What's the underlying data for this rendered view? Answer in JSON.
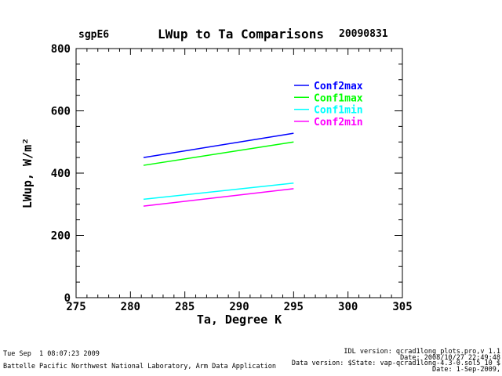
{
  "header": {
    "site": "sgpE6",
    "date": "20090831"
  },
  "chart_data": {
    "type": "line",
    "title": "LWup to Ta Comparisons",
    "site": "sgpE6",
    "date": "20090831",
    "xlabel": "Ta, Degree K",
    "ylabel": "LWup, W/m²",
    "xlim": [
      275,
      305
    ],
    "ylim": [
      0,
      800
    ],
    "x_major_ticks": [
      275,
      280,
      285,
      290,
      295,
      300,
      305
    ],
    "x_minor_step": 1,
    "y_major_ticks": [
      0,
      200,
      400,
      600,
      800
    ],
    "y_minor_step": 50,
    "grid": false,
    "background": "#ffffff",
    "axis_color": "#000000",
    "legend_position": "inside-upper-right",
    "series": [
      {
        "name": "Conf2max",
        "color": "#0000ff",
        "x": [
          281.2,
          295.0
        ],
        "y": [
          450,
          528
        ]
      },
      {
        "name": "Conf1max",
        "color": "#00ff00",
        "x": [
          281.2,
          295.0
        ],
        "y": [
          425,
          500
        ]
      },
      {
        "name": "Conf1min",
        "color": "#00ffff",
        "x": [
          281.2,
          295.0
        ],
        "y": [
          316,
          368
        ]
      },
      {
        "name": "Conf2min",
        "color": "#ff00ff",
        "x": [
          281.2,
          295.0
        ],
        "y": [
          294,
          350
        ]
      }
    ]
  },
  "footer": {
    "left_lines": [
      "Tue Sep  1 08:07:23 2009",
      "Battelle Pacific Northwest National Laboratory, Arm Data Application"
    ],
    "right_lines": [
      "IDL version: qcrad1long_plots.pro,v 1.1",
      "Date: 2008/10/27 22:49:48",
      "Data version: $State: vap-qcrad1long-4.3-0.sol5_10 $",
      "Date: 1-Sep-2009,"
    ]
  }
}
